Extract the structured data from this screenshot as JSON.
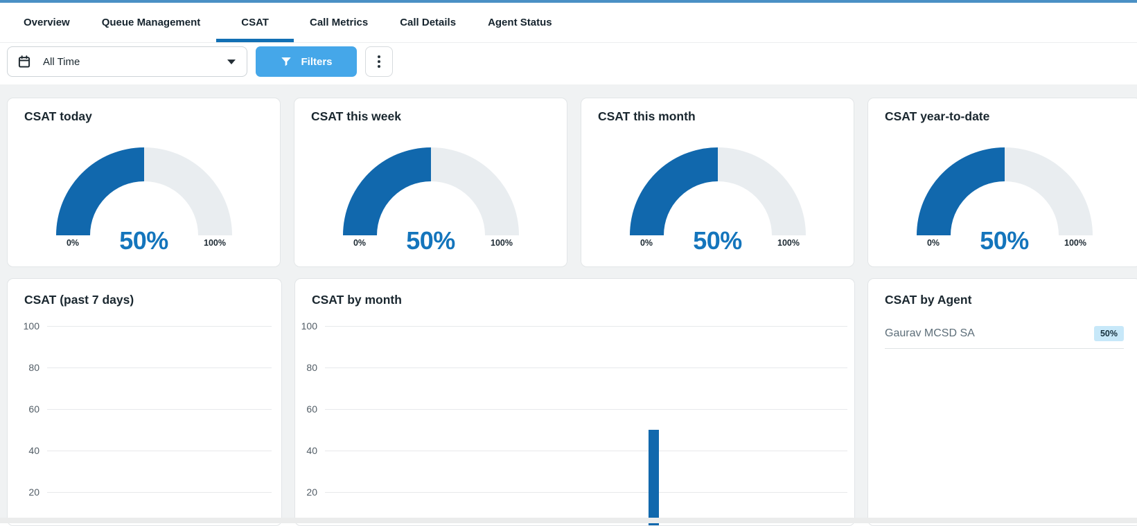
{
  "nav": {
    "tabs": [
      {
        "label": "Overview",
        "active": false
      },
      {
        "label": "Queue Management",
        "active": false
      },
      {
        "label": "CSAT",
        "active": true
      },
      {
        "label": "Call Metrics",
        "active": false
      },
      {
        "label": "Call Details",
        "active": false
      },
      {
        "label": "Agent Status",
        "active": false
      }
    ]
  },
  "filter_bar": {
    "date_range_value": "All Time",
    "filters_button_label": "Filters",
    "icons": [
      "calendar-icon",
      "dropdown-caret-icon",
      "funnel-icon",
      "kebab-menu-icon"
    ]
  },
  "colors": {
    "top_strip": "#4a90c5",
    "tab_underline": "#1270b4",
    "filters_button": "#45a7e9",
    "gauge_fill": "#1168ad",
    "gauge_track": "#e9edf0",
    "gauge_value_text": "#1475bc",
    "bar": "#1168ad",
    "badge_bg": "#c7e8f9",
    "page_background": "#f0f2f3"
  },
  "chart_data": [
    {
      "type": "gauge",
      "title": "CSAT today",
      "value": 50,
      "value_label": "50%",
      "min": 0,
      "max": 100,
      "min_label": "0%",
      "max_label": "100%"
    },
    {
      "type": "gauge",
      "title": "CSAT this week",
      "value": 50,
      "value_label": "50%",
      "min": 0,
      "max": 100,
      "min_label": "0%",
      "max_label": "100%"
    },
    {
      "type": "gauge",
      "title": "CSAT this month",
      "value": 50,
      "value_label": "50%",
      "min": 0,
      "max": 100,
      "min_label": "0%",
      "max_label": "100%"
    },
    {
      "type": "gauge",
      "title": "CSAT year-to-date",
      "value": 50,
      "value_label": "50%",
      "min": 0,
      "max": 100,
      "min_label": "0%",
      "max_label": "100%"
    },
    {
      "type": "bar",
      "title": "CSAT (past 7 days)",
      "ylim": [
        0,
        100
      ],
      "yticks": [
        100,
        80,
        60,
        40,
        20
      ],
      "grid": true,
      "categories": [],
      "values": []
    },
    {
      "type": "bar",
      "title": "CSAT by month",
      "ylim": [
        0,
        100
      ],
      "yticks": [
        100,
        80,
        60,
        40,
        20
      ],
      "grid": true,
      "bars": [
        {
          "value": 50,
          "position_pct": 61.8
        }
      ]
    },
    {
      "type": "table",
      "title": "CSAT by Agent",
      "columns": [
        "agent",
        "csat"
      ],
      "rows": [
        {
          "agent": "Gaurav MCSD SA",
          "csat": "50%"
        }
      ]
    }
  ]
}
